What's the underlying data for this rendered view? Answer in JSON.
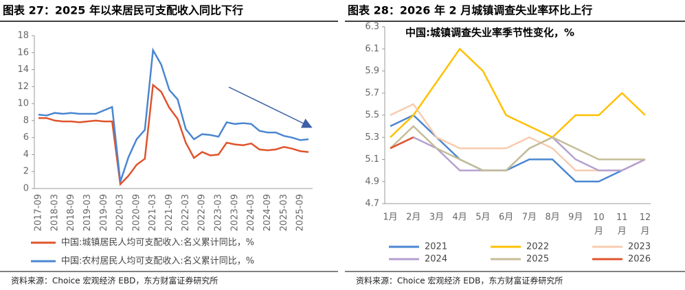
{
  "chart_data": [
    {
      "type": "line",
      "title": "图表 27：2025 年以来居民可支配收入同比下行",
      "categories": [
        "2017-09",
        null,
        "2018-03",
        null,
        "2018-09",
        null,
        "2019-03",
        null,
        "2019-09",
        null,
        "2020-03",
        null,
        "2020-09",
        null,
        "2021-03",
        null,
        "2021-09",
        null,
        "2022-03",
        null,
        "2022-09",
        null,
        "2023-03",
        null,
        "2023-09",
        null,
        "2024-03",
        null,
        "2024-09",
        null,
        "2025-03",
        null,
        "2025-09",
        null
      ],
      "series": [
        {
          "name": "中国:城镇居民人均可支配收入:名义累计同比，%",
          "color": "#e0532b",
          "values": [
            8.3,
            8.3,
            8.0,
            7.9,
            7.9,
            7.8,
            7.9,
            8.0,
            7.9,
            7.9,
            0.5,
            1.5,
            2.8,
            3.5,
            12.2,
            11.4,
            9.5,
            8.2,
            5.4,
            3.6,
            4.3,
            3.9,
            4.0,
            5.4,
            5.2,
            5.1,
            5.3,
            4.6,
            4.5,
            4.6,
            4.9,
            4.7,
            4.4,
            4.3
          ]
        },
        {
          "name": "中国:农村居民人均可支配收入:名义累计同比，%",
          "color": "#4a86d0",
          "values": [
            8.7,
            8.6,
            8.9,
            8.8,
            8.9,
            8.8,
            8.8,
            8.8,
            9.2,
            9.6,
            0.8,
            3.7,
            5.8,
            6.9,
            16.3,
            14.6,
            11.6,
            10.5,
            7.0,
            5.8,
            6.4,
            6.3,
            6.1,
            7.8,
            7.6,
            7.7,
            7.6,
            6.8,
            6.6,
            6.6,
            6.2,
            6.0,
            5.7,
            5.8
          ]
        }
      ],
      "ylim": [
        0,
        18
      ],
      "yticks": [
        0,
        2,
        4,
        6,
        8,
        10,
        12,
        14,
        16,
        18
      ],
      "source": "资料来源：Choice 宏观经济 EBD，东方财富证券研究所"
    },
    {
      "type": "line",
      "title": "图表 28：2026 年 2 月城镇调查失业率环比上行",
      "subtitle": "中国:城镇调查失业率季节性变化，%",
      "categories": [
        "1月",
        "2月",
        "3月",
        "4月",
        "5月",
        "6月",
        "7月",
        "8月",
        "9月",
        "10月",
        "11月",
        "12月"
      ],
      "series": [
        {
          "name": "2021",
          "color": "#4a86d0",
          "values": [
            5.4,
            5.5,
            5.3,
            5.1,
            5.0,
            5.0,
            5.1,
            5.1,
            4.9,
            4.9,
            5.0,
            5.1
          ]
        },
        {
          "name": "2022",
          "color": "#ffc000",
          "values": [
            5.3,
            5.5,
            5.8,
            6.1,
            5.9,
            5.5,
            5.4,
            5.3,
            5.5,
            5.5,
            5.7,
            5.5
          ]
        },
        {
          "name": "2023",
          "color": "#f8cbad",
          "values": [
            5.5,
            5.6,
            5.3,
            5.2,
            5.2,
            5.2,
            5.3,
            5.2,
            5.0,
            5.0,
            5.0,
            5.1
          ]
        },
        {
          "name": "2024",
          "color": "#b4a0d0",
          "values": [
            5.2,
            5.3,
            5.2,
            5.0,
            5.0,
            5.0,
            5.2,
            5.3,
            5.1,
            5.0,
            5.0,
            5.1
          ]
        },
        {
          "name": "2025",
          "color": "#c4bd97",
          "values": [
            5.2,
            5.4,
            5.2,
            5.1,
            5.0,
            5.0,
            5.2,
            5.3,
            5.2,
            5.1,
            5.1,
            5.1
          ]
        },
        {
          "name": "2026",
          "color": "#e0532b",
          "values": [
            5.2,
            5.3,
            null,
            null,
            null,
            null,
            null,
            null,
            null,
            null,
            null,
            null
          ]
        }
      ],
      "ylim": [
        4.7,
        6.3
      ],
      "yticks": [
        4.7,
        4.9,
        5.1,
        5.3,
        5.5,
        5.7,
        5.9,
        6.1,
        6.3
      ],
      "source": "资料来源：Choice 宏观经济 EDB，东方财富证券研究所"
    }
  ]
}
